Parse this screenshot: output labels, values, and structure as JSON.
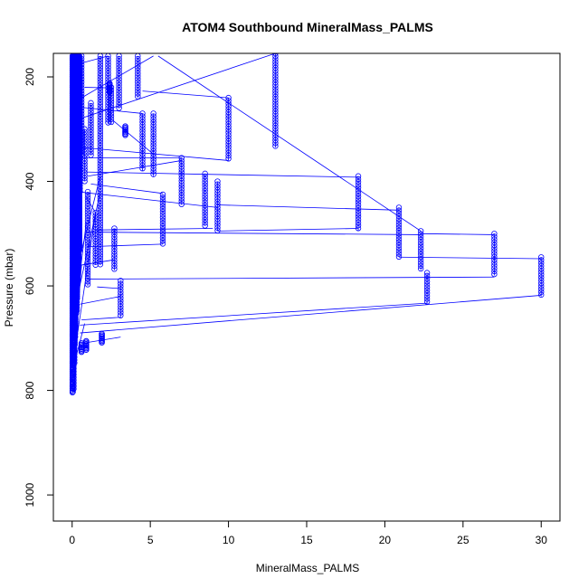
{
  "chart_data": {
    "type": "scatter",
    "title": "ATOM4 Southbound MineralMass_PALMS",
    "xlabel": "MineralMass_PALMS",
    "ylabel": "Pressure (mbar)",
    "xlim": [
      -1.2,
      31.2
    ],
    "ylim": [
      1050,
      155
    ],
    "y_reversed": true,
    "x_ticks": [
      0,
      5,
      10,
      15,
      20,
      25,
      30
    ],
    "y_ticks": [
      200,
      400,
      600,
      800,
      1000
    ],
    "grid": false,
    "legend": "none",
    "color": "#0000ff",
    "marker": "open-circle",
    "connected": true,
    "columns": [
      {
        "x": 0.05,
        "p": [
          160,
          805
        ]
      },
      {
        "x": 0.1,
        "p": [
          160,
          800
        ]
      },
      {
        "x": 0.15,
        "p": [
          160,
          750
        ]
      },
      {
        "x": 0.2,
        "p": [
          160,
          700
        ]
      },
      {
        "x": 0.3,
        "p": [
          160,
          650
        ]
      },
      {
        "x": 0.4,
        "p": [
          160,
          500
        ]
      },
      {
        "x": 0.5,
        "p": [
          170,
          420
        ]
      },
      {
        "x": 0.6,
        "p": [
          160,
          350
        ]
      },
      {
        "x": 0.8,
        "p": [
          300,
          400
        ]
      },
      {
        "x": 1.0,
        "p": [
          420,
          600
        ]
      },
      {
        "x": 1.2,
        "p": [
          250,
          350
        ]
      },
      {
        "x": 1.5,
        "p": [
          460,
          560
        ]
      },
      {
        "x": 1.8,
        "p": [
          160,
          560
        ]
      },
      {
        "x": 2.3,
        "p": [
          160,
          290
        ]
      },
      {
        "x": 2.5,
        "p": [
          220,
          290
        ]
      },
      {
        "x": 2.7,
        "p": [
          490,
          570
        ]
      },
      {
        "x": 3.0,
        "p": [
          160,
          260
        ]
      },
      {
        "x": 3.1,
        "p": [
          590,
          660
        ]
      },
      {
        "x": 4.2,
        "p": [
          160,
          240
        ]
      },
      {
        "x": 4.5,
        "p": [
          270,
          380
        ]
      },
      {
        "x": 5.2,
        "p": [
          270,
          390
        ]
      },
      {
        "x": 5.8,
        "p": [
          425,
          520
        ]
      },
      {
        "x": 7.0,
        "p": [
          355,
          445
        ]
      },
      {
        "x": 8.5,
        "p": [
          385,
          485
        ]
      },
      {
        "x": 9.3,
        "p": [
          400,
          495
        ]
      },
      {
        "x": 10.0,
        "p": [
          240,
          360
        ]
      },
      {
        "x": 13.0,
        "p": [
          155,
          335
        ]
      },
      {
        "x": 18.3,
        "p": [
          390,
          495
        ]
      },
      {
        "x": 20.9,
        "p": [
          450,
          545
        ]
      },
      {
        "x": 22.3,
        "p": [
          495,
          570
        ]
      },
      {
        "x": 22.7,
        "p": [
          575,
          635
        ]
      },
      {
        "x": 27.0,
        "p": [
          500,
          580
        ]
      },
      {
        "x": 30.0,
        "p": [
          545,
          620
        ]
      }
    ],
    "clusters": [
      {
        "x": 0.6,
        "p": 718
      },
      {
        "x": 0.9,
        "p": 714
      },
      {
        "x": 1.9,
        "p": 700
      },
      {
        "x": 3.4,
        "p": 303
      },
      {
        "x": 2.4,
        "p": 221
      },
      {
        "x": 0.4,
        "p": 496
      }
    ],
    "segments": [
      [
        [
          0.3,
          176
        ],
        [
          2.3,
          160
        ]
      ],
      [
        [
          0.8,
          220
        ],
        [
          2.4,
          221
        ]
      ],
      [
        [
          4.5,
          227
        ],
        [
          10.0,
          240
        ]
      ],
      [
        [
          0.5,
          258
        ],
        [
          4.5,
          270
        ]
      ],
      [
        [
          0.6,
          240
        ],
        [
          5.2,
          160
        ]
      ],
      [
        [
          2.6,
          283
        ],
        [
          5.2,
          348
        ]
      ],
      [
        [
          5.5,
          160
        ],
        [
          22.3,
          495
        ]
      ],
      [
        [
          0.5,
          280
        ],
        [
          13.0,
          155
        ]
      ],
      [
        [
          0.6,
          335
        ],
        [
          10.0,
          360
        ]
      ],
      [
        [
          0.5,
          355
        ],
        [
          7.0,
          355
        ]
      ],
      [
        [
          0.8,
          382
        ],
        [
          18.3,
          392
        ]
      ],
      [
        [
          1.0,
          390
        ],
        [
          7.0,
          360
        ]
      ],
      [
        [
          1.2,
          405
        ],
        [
          5.8,
          423
        ]
      ],
      [
        [
          0.4,
          420
        ],
        [
          9.3,
          450
        ]
      ],
      [
        [
          9.3,
          445
        ],
        [
          20.9,
          455
        ]
      ],
      [
        [
          0.9,
          430
        ],
        [
          1.5,
          460
        ]
      ],
      [
        [
          1.5,
          493
        ],
        [
          9.0,
          490
        ]
      ],
      [
        [
          9.3,
          495
        ],
        [
          18.3,
          490
        ]
      ],
      [
        [
          1.0,
          497
        ],
        [
          22.3,
          502
        ]
      ],
      [
        [
          22.3,
          500
        ],
        [
          27.0,
          502
        ]
      ],
      [
        [
          20.9,
          545
        ],
        [
          30.0,
          548
        ]
      ],
      [
        [
          1.0,
          525
        ],
        [
          5.8,
          520
        ]
      ],
      [
        [
          0.6,
          560
        ],
        [
          2.7,
          550
        ]
      ],
      [
        [
          1.0,
          587
        ],
        [
          27.0,
          583
        ]
      ],
      [
        [
          1.6,
          602
        ],
        [
          3.1,
          605
        ]
      ],
      [
        [
          0.5,
          635
        ],
        [
          3.1,
          620
        ]
      ],
      [
        [
          0.5,
          690
        ],
        [
          30.0,
          618
        ]
      ],
      [
        [
          0.5,
          675
        ],
        [
          22.7,
          633
        ]
      ],
      [
        [
          0.6,
          665
        ],
        [
          3.1,
          660
        ]
      ],
      [
        [
          0.6,
          710
        ],
        [
          3.1,
          698
        ]
      ],
      [
        [
          0.3,
          730
        ],
        [
          0.8,
          672
        ]
      ],
      [
        [
          0.1,
          750
        ],
        [
          0.6,
          560
        ]
      ],
      [
        [
          0.3,
          700
        ],
        [
          1.5,
          460
        ]
      ],
      [
        [
          0.2,
          640
        ],
        [
          1.8,
          420
        ]
      ],
      [
        [
          0.4,
          600
        ],
        [
          0.9,
          480
        ]
      ],
      [
        [
          0.2,
          580
        ],
        [
          1.8,
          390
        ]
      ]
    ]
  }
}
